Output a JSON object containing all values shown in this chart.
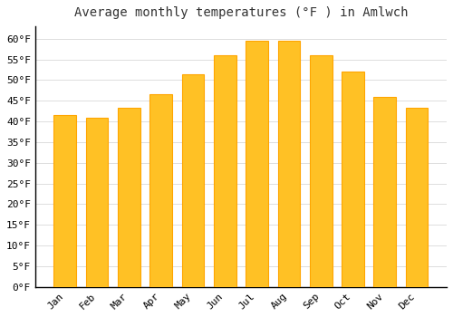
{
  "title": "Average monthly temperatures (°F ) in Amlwch",
  "months": [
    "Jan",
    "Feb",
    "Mar",
    "Apr",
    "May",
    "Jun",
    "Jul",
    "Aug",
    "Sep",
    "Oct",
    "Nov",
    "Dec"
  ],
  "values": [
    41.5,
    40.8,
    43.3,
    46.5,
    51.5,
    56.0,
    59.5,
    59.5,
    56.0,
    52.0,
    46.0,
    43.3
  ],
  "bar_color": "#FFC125",
  "bar_edge_color": "#FFA500",
  "background_color": "#FFFFFF",
  "grid_color": "#DDDDDD",
  "ylim": [
    0,
    63
  ],
  "ytick_values": [
    0,
    5,
    10,
    15,
    20,
    25,
    30,
    35,
    40,
    45,
    50,
    55,
    60
  ],
  "title_fontsize": 10,
  "tick_fontsize": 8,
  "bar_width": 0.7
}
